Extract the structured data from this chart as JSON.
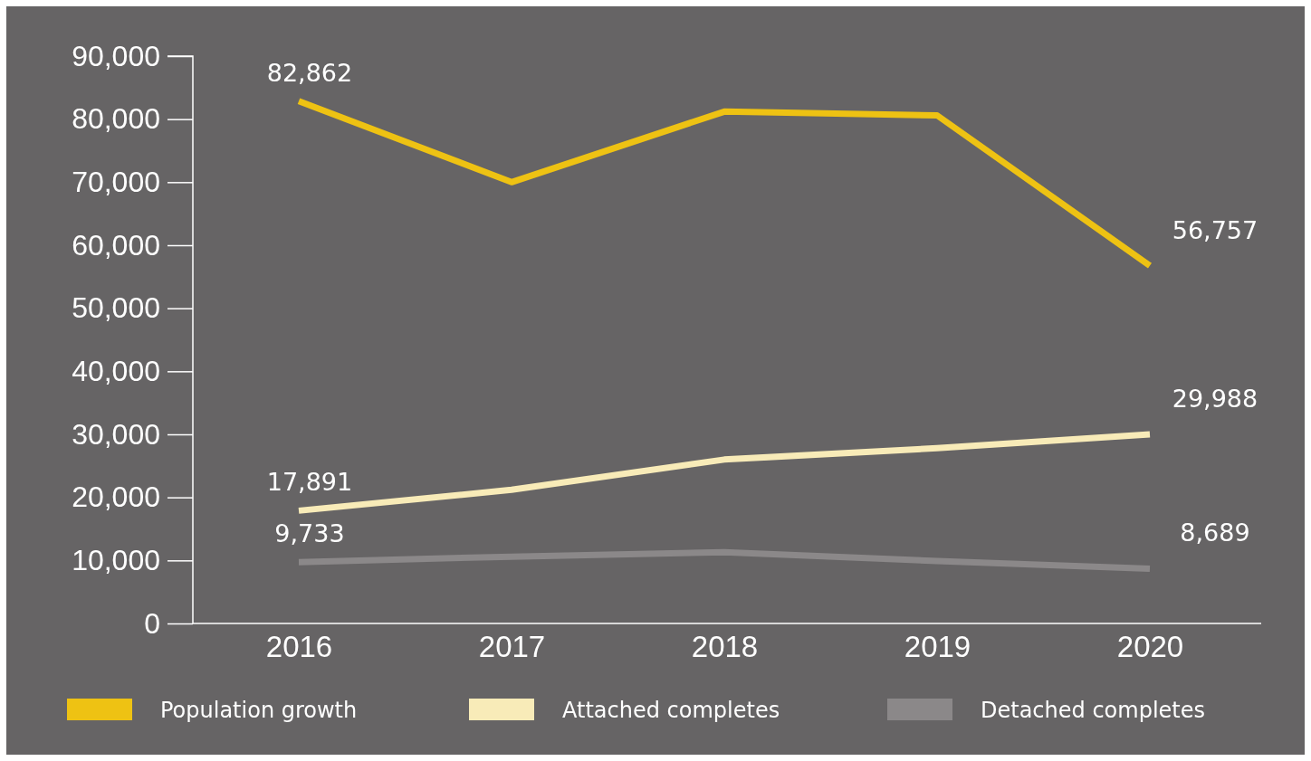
{
  "chart_data": {
    "type": "line",
    "categories": [
      "2016",
      "2017",
      "2018",
      "2019",
      "2020"
    ],
    "series": [
      {
        "name": "Population growth",
        "color": "#eec213",
        "values": [
          82862,
          70000,
          81200,
          80600,
          56757
        ],
        "value_labels": [
          "82,862",
          null,
          null,
          null,
          "56,757"
        ]
      },
      {
        "name": "Attached completes",
        "color": "#f8ebb8",
        "values": [
          17891,
          21200,
          26000,
          27800,
          29988
        ],
        "value_labels": [
          "17,891",
          null,
          null,
          null,
          "29,988"
        ]
      },
      {
        "name": "Detached completes",
        "color": "#8b8889",
        "values": [
          9733,
          10600,
          11300,
          9900,
          8689
        ],
        "value_labels": [
          "9,733",
          null,
          null,
          null,
          "8,689"
        ]
      }
    ],
    "ylim": [
      0,
      90000
    ],
    "yticks": [
      {
        "value": 0,
        "label": "0"
      },
      {
        "value": 10000,
        "label": "10,000"
      },
      {
        "value": 20000,
        "label": "20,000"
      },
      {
        "value": 30000,
        "label": "30,000"
      },
      {
        "value": 40000,
        "label": "40,000"
      },
      {
        "value": 50000,
        "label": "50,000"
      },
      {
        "value": 60000,
        "label": "60,000"
      },
      {
        "value": 70000,
        "label": "70,000"
      },
      {
        "value": 80000,
        "label": "80,000"
      },
      {
        "value": 90000,
        "label": "90,000"
      }
    ],
    "grid": false,
    "legend": "bottom",
    "marker": "none",
    "line_style": "solid"
  }
}
